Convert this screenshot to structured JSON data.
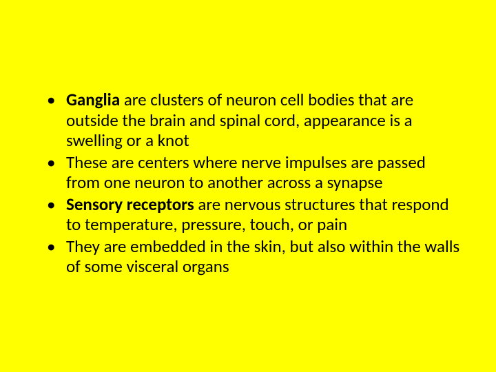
{
  "slide": {
    "background_color": "#ffff00",
    "text_color": "#000000",
    "font_family": "Calibri",
    "font_size_pt": 25,
    "line_height": 1.18,
    "bullets": [
      {
        "bold_lead": "Ganglia",
        "rest": " are clusters of neuron cell bodies that are outside the brain and spinal cord, appearance is a swelling or a knot"
      },
      {
        "bold_lead": "",
        "rest": "These are centers where nerve impulses are passed from one neuron to another across a synapse"
      },
      {
        "bold_lead": "Sensory receptors",
        "rest": " are nervous structures that respond to temperature, pressure, touch, or pain"
      },
      {
        "bold_lead": "",
        "rest": "They are embedded in the skin, but also within the walls of some visceral organs"
      }
    ]
  }
}
